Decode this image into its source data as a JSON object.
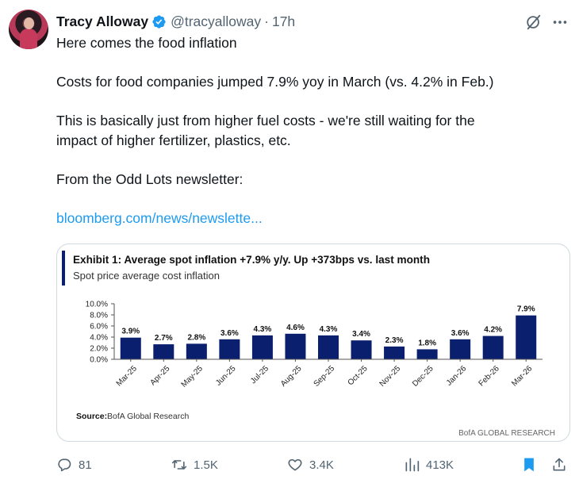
{
  "tweet": {
    "author_name": "Tracy Alloway",
    "handle": "@tracyalloway",
    "separator": "·",
    "time": "17h",
    "text_lines": [
      "Here comes the food inflation",
      "Costs for food companies jumped 7.9% yoy in March (vs. 4.2% in Feb.)",
      "This is basically just from higher fuel costs - we're still waiting for the",
      "impact of higher fertilizer, plastics, etc.",
      "From the Odd Lots newsletter:"
    ],
    "link_text": "bloomberg.com/news/newslette..."
  },
  "icons": {
    "verified": "verified-badge-icon",
    "grok": "grok-icon",
    "more": "more-options-icon",
    "reply": "reply-icon",
    "retweet": "retweet-icon",
    "like": "heart-icon",
    "views": "views-chart-icon",
    "bookmark": "bookmark-icon",
    "share": "share-icon"
  },
  "colors": {
    "verified": "#1d9bf0",
    "link": "#1d9bf0",
    "bar": "#0a1f6e",
    "bookmark": "#1d9bf0",
    "muted": "#536471"
  },
  "actions": {
    "replies": "81",
    "retweets": "1.5K",
    "likes": "3.4K",
    "views": "413K"
  },
  "chart_data": {
    "type": "bar",
    "title": "Exhibit 1: Average spot inflation +7.9% y/y. Up +373bps vs. last month",
    "subtitle": "Spot price average cost inflation",
    "categories": [
      "Mar-25",
      "Apr-25",
      "May-25",
      "Jun-25",
      "Jul-25",
      "Aug-25",
      "Sep-25",
      "Oct-25",
      "Nov-25",
      "Dec-25",
      "Jan-26",
      "Feb-26",
      "Mar-26"
    ],
    "values": [
      3.9,
      2.7,
      2.8,
      3.6,
      4.3,
      4.6,
      4.3,
      3.4,
      2.3,
      1.8,
      3.6,
      4.2,
      7.9
    ],
    "data_labels": [
      "3.9%",
      "2.7%",
      "2.8%",
      "3.6%",
      "4.3%",
      "4.6%",
      "4.3%",
      "3.4%",
      "2.3%",
      "1.8%",
      "3.6%",
      "4.2%",
      "7.9%"
    ],
    "y_ticks": [
      "0.0%",
      "2.0%",
      "4.0%",
      "6.0%",
      "8.0%",
      "10.0%"
    ],
    "y_tick_values": [
      0,
      2,
      4,
      6,
      8,
      10
    ],
    "ylim": [
      0,
      10
    ],
    "grid": false,
    "source_label": "Source:",
    "source_text": "BofA Global Research",
    "watermark": "BofA GLOBAL RESEARCH"
  }
}
